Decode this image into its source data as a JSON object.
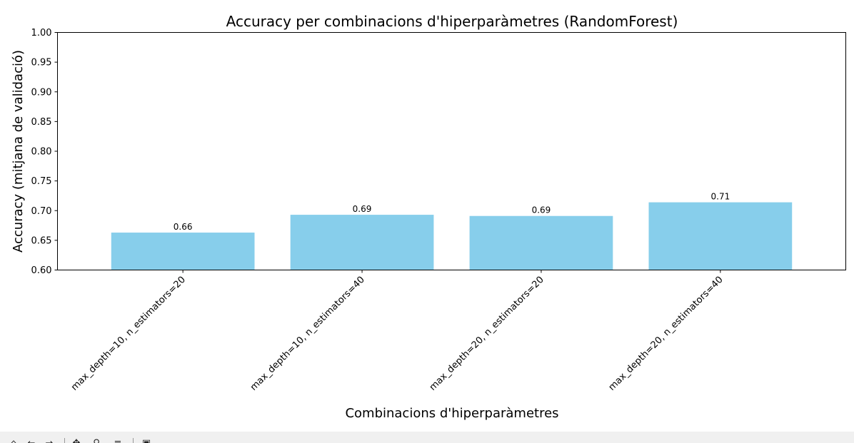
{
  "chart_data": {
    "type": "bar",
    "title": "Accuracy per combinacions d'hiperparàmetres (RandomForest)",
    "xlabel": "Combinacions d'hiperparàmetres",
    "ylabel": "Accuracy (mitjana de validació)",
    "categories": [
      "max_depth=10, n_estimators=20",
      "max_depth=10, n_estimators=40",
      "max_depth=20, n_estimators=20",
      "max_depth=20, n_estimators=40"
    ],
    "values": [
      0.663,
      0.693,
      0.691,
      0.714
    ],
    "data_labels": [
      "0.66",
      "0.69",
      "0.69",
      "0.71"
    ],
    "ylim": [
      0.6,
      1.0
    ],
    "yticks": [
      "0.60",
      "0.65",
      "0.70",
      "0.75",
      "0.80",
      "0.85",
      "0.90",
      "0.95",
      "1.00"
    ],
    "ytick_values": [
      0.6,
      0.65,
      0.7,
      0.75,
      0.8,
      0.85,
      0.9,
      0.95,
      1.0
    ],
    "bar_color": "#87ceeb",
    "grid": false,
    "legend": "none"
  },
  "toolbar": {
    "buttons": [
      {
        "name": "home-icon",
        "glyph": "⌂"
      },
      {
        "name": "back-icon",
        "glyph": "←"
      },
      {
        "name": "forward-icon",
        "glyph": "→"
      },
      {
        "name": "pan-icon",
        "glyph": "✥"
      },
      {
        "name": "zoom-icon",
        "glyph": "⚲"
      },
      {
        "name": "configure-icon",
        "glyph": "≡"
      },
      {
        "name": "save-icon",
        "glyph": "▣"
      }
    ]
  }
}
